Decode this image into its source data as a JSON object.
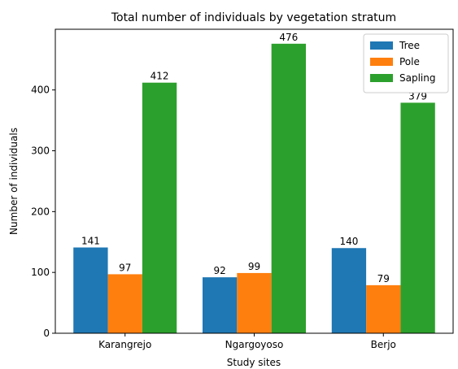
{
  "chart_data": {
    "type": "bar",
    "title": "Total number of individuals by vegetation stratum",
    "x_label": "Study sites",
    "y_label": "Number of individuals",
    "categories": [
      "Karangrejo",
      "Ngargoyoso",
      "Berjo"
    ],
    "series": [
      {
        "name": "Tree",
        "color": "#1f77b4",
        "values": [
          141,
          92,
          140
        ]
      },
      {
        "name": "Pole",
        "color": "#ff7f0e",
        "values": [
          97,
          99,
          79
        ]
      },
      {
        "name": "Sapling",
        "color": "#2ca02c",
        "values": [
          412,
          476,
          379
        ]
      }
    ],
    "ylim": [
      0,
      499.8
    ],
    "yticks": [
      0,
      100,
      200,
      300,
      400
    ],
    "legend": "upper right",
    "grid": false
  }
}
